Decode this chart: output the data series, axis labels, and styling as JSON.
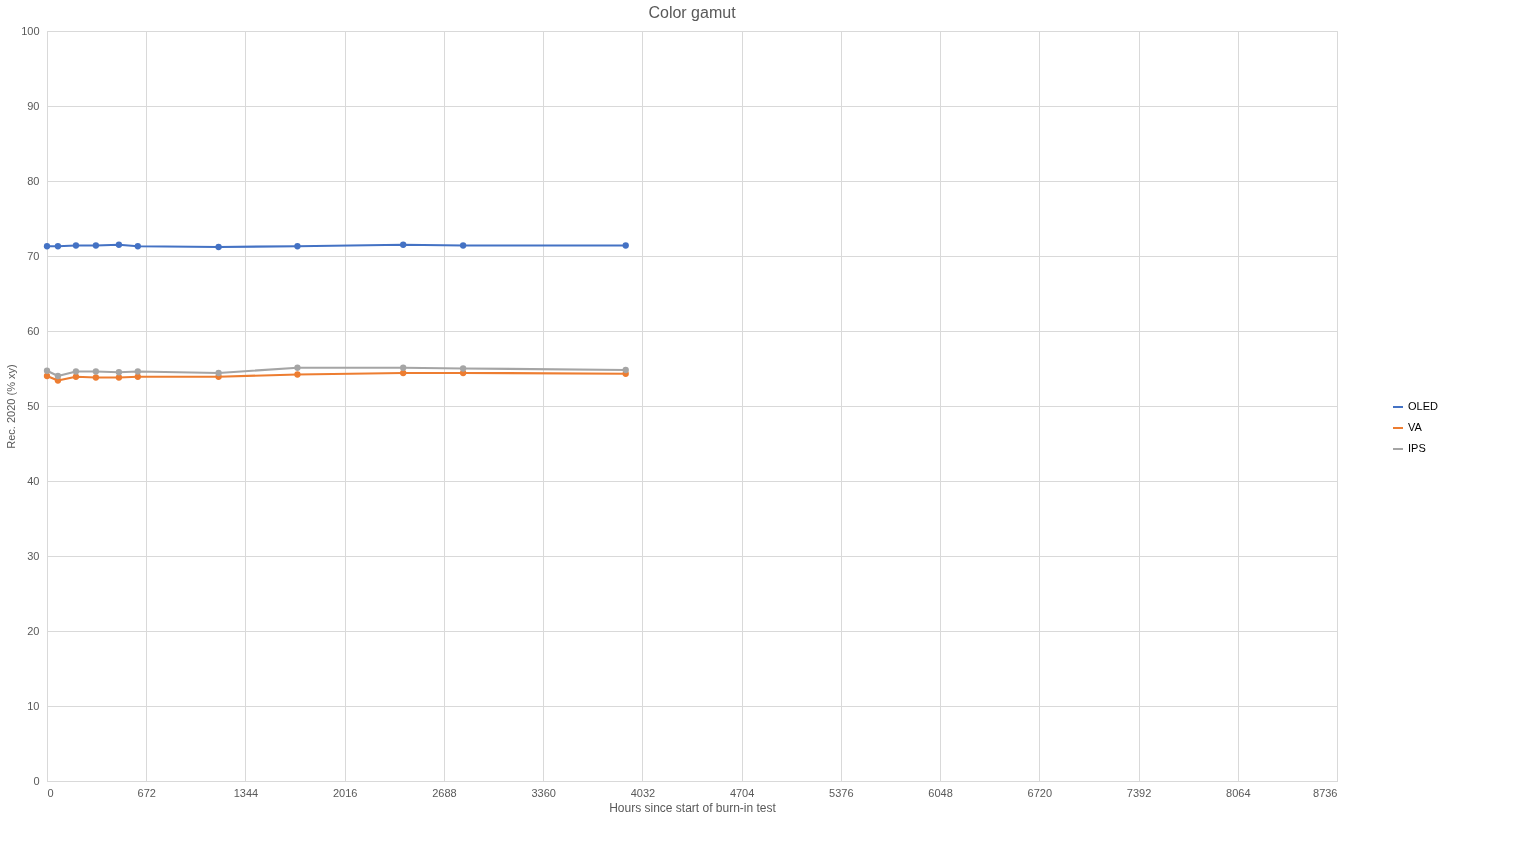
{
  "chart_data": {
    "type": "line",
    "title": "Color gamut",
    "xlabel": "Hours since start of burn-in test",
    "ylabel": "Rec. 2020 (% xy)",
    "x": [
      0,
      74,
      196,
      331,
      487,
      615,
      1162,
      1696,
      2412,
      2818,
      3919
    ],
    "series": [
      {
        "name": "OLED",
        "color": "#4472c4",
        "values": [
          71.3,
          71.3,
          71.4,
          71.4,
          71.5,
          71.3,
          71.2,
          71.3,
          71.5,
          71.4,
          71.4
        ]
      },
      {
        "name": "VA",
        "color": "#ed7d31",
        "values": [
          54.0,
          53.4,
          53.9,
          53.8,
          53.8,
          53.9,
          53.9,
          54.2,
          54.4,
          54.4,
          54.3
        ]
      },
      {
        "name": "IPS",
        "color": "#a5a5a5",
        "values": [
          54.7,
          54.0,
          54.6,
          54.6,
          54.5,
          54.6,
          54.4,
          55.1,
          55.1,
          55.0,
          54.8
        ]
      }
    ],
    "xlim": [
      0,
      8736
    ],
    "xticks": [
      0,
      672,
      1344,
      2016,
      2688,
      3360,
      4032,
      4704,
      5376,
      6048,
      6720,
      7392,
      8064,
      8736
    ],
    "ylim": [
      0,
      100
    ],
    "yticks": [
      0,
      10,
      20,
      30,
      40,
      50,
      60,
      70,
      80,
      90,
      100
    ],
    "grid": true,
    "legend": "right",
    "marker": "circle",
    "line_style": "solid"
  }
}
